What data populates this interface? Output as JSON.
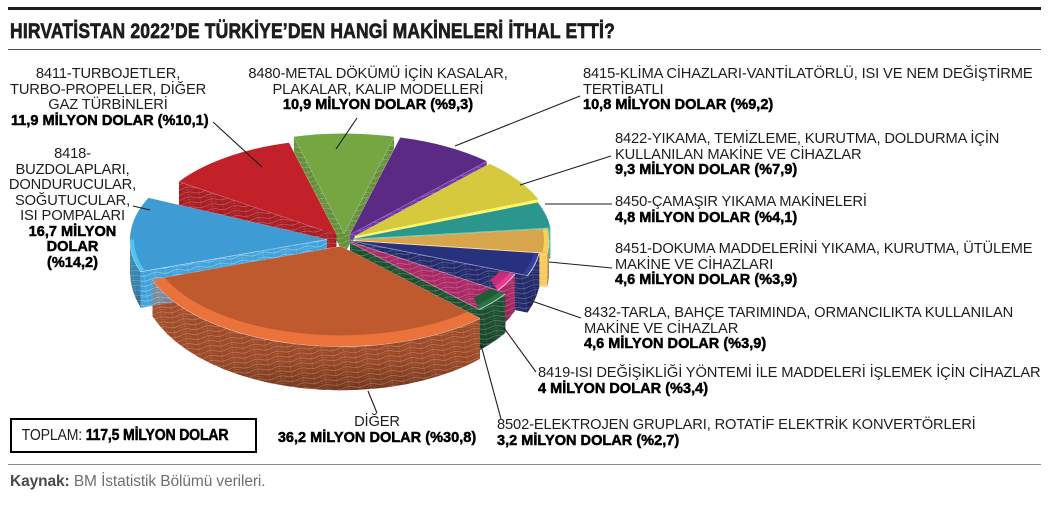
{
  "header": {
    "title": "HIRVATİSTAN 2022’DE TÜRKİYE’DEN HANGİ MAKİNELERİ İTHAL ETTİ?"
  },
  "total_box": {
    "label": "TOPLAM: ",
    "value": "117,5 MİLYON DOLAR"
  },
  "source": {
    "label": "Kaynak: ",
    "text": "BM İstatistik Bölümü verileri."
  },
  "chart_data": {
    "type": "pie",
    "style": "3d-exploded",
    "title": "HIRVATİSTAN 2022’DE TÜRKİYE’DEN HANGİ MAKİNELERİ İTHAL ETTİ?",
    "unit": "MİLYON DOLAR",
    "total_value": 117.5,
    "legend_position": "around-callouts",
    "slices": [
      {
        "code": "8411",
        "name_lines": [
          "8411-TURBOJETLER,",
          "TURBO-PROPELLER, DİĞER",
          "GAZ TÜRBİNLERİ"
        ],
        "value_lines": [
          "11,9 MİLYON DOLAR (%10,1)"
        ],
        "value": 11.9,
        "pct": 10.1,
        "color": "#c32129"
      },
      {
        "code": "8480",
        "name_lines": [
          "8480-METAL DÖKÜMÜ İÇİN KASALAR,",
          "PLAKALAR, KALIP MODELLERİ"
        ],
        "value_lines": [
          "10,9 MİLYON DOLAR (%9,3)"
        ],
        "value": 10.9,
        "pct": 9.3,
        "color": "#74a642"
      },
      {
        "code": "8415",
        "name_lines": [
          "8415-KLİMA CİHAZLARI-VANTİLATÖRLÜ, ISI VE NEM DEĞİŞTİRME",
          "TERTİBATLI"
        ],
        "value_lines": [
          "10,8 MİLYON DOLAR (%9,2)"
        ],
        "value": 10.8,
        "pct": 9.2,
        "color": "#5a2a85"
      },
      {
        "code": "8422",
        "name_lines": [
          "8422-YIKAMA, TEMİZLEME, KURUTMA, DOLDURMA İÇİN",
          "KULLANILAN MAKİNE VE CİHAZLAR"
        ],
        "value_lines": [
          "9,3 MİLYON DOLAR (%7,9)"
        ],
        "value": 9.3,
        "pct": 7.9,
        "color": "#d7c93e"
      },
      {
        "code": "8450",
        "name_lines": [
          "8450-ÇAMAŞIR YIKAMA MAKİNELERİ"
        ],
        "value_lines": [
          "4,8 MİLYON DOLAR (%4,1)"
        ],
        "value": 4.8,
        "pct": 4.1,
        "color": "#2b968c"
      },
      {
        "code": "8451",
        "name_lines": [
          "8451-DOKUMA MADDELERİNİ YIKAMA, KURUTMA, ÜTÜLEME",
          "MAKİNE VE CİHAZLARI"
        ],
        "value_lines": [
          "4,6 MİLYON DOLAR (%3,9)"
        ],
        "value": 4.6,
        "pct": 3.9,
        "color": "#d7a54b"
      },
      {
        "code": "8432",
        "name_lines": [
          "8432-TARLA, BAHÇE TARIMINDA, ORMANCILIKTA KULLANILAN",
          "MAKİNE VE CİHAZLAR"
        ],
        "value_lines": [
          "4,6 MİLYON DOLAR (%3,9)"
        ],
        "value": 4.6,
        "pct": 3.9,
        "color": "#28317e"
      },
      {
        "code": "8419",
        "name_lines": [
          "8419-ISI DEĞİŞİKLİĞİ YÖNTEMİ İLE MADDELERİ İŞLEMEK İÇİN CİHAZLAR"
        ],
        "value_lines": [
          "4 MİLYON DOLAR (%3,4)"
        ],
        "value": 4.0,
        "pct": 3.4,
        "color": "#c52d74"
      },
      {
        "code": "8502",
        "name_lines": [
          "8502-ELEKTROJEN GRUPLARI, ROTATİF ELEKTRİK KONVERTÖRLERİ"
        ],
        "value_lines": [
          "3,2 MİLYON DOLAR (%2,7)"
        ],
        "value": 3.2,
        "pct": 2.7,
        "color": "#1f5c36"
      },
      {
        "code": "DİĞER",
        "name_lines": [
          "DİĞER"
        ],
        "value_lines": [
          "36,2 MİLYON DOLAR (%30,8)"
        ],
        "value": 36.2,
        "pct": 30.8,
        "color": "#bf5a2f"
      },
      {
        "code": "8418",
        "name_lines": [
          "8418-",
          "BUZDOLAPLARI,",
          "DONDURUCULAR,",
          "SOĞUTUCULAR,",
          "ISI POMPALARI"
        ],
        "value_lines": [
          "16,7 MİLYON",
          "DOLAR",
          "(%14,2)"
        ],
        "value": 16.7,
        "pct": 14.2,
        "color": "#3f9bd3"
      }
    ]
  }
}
